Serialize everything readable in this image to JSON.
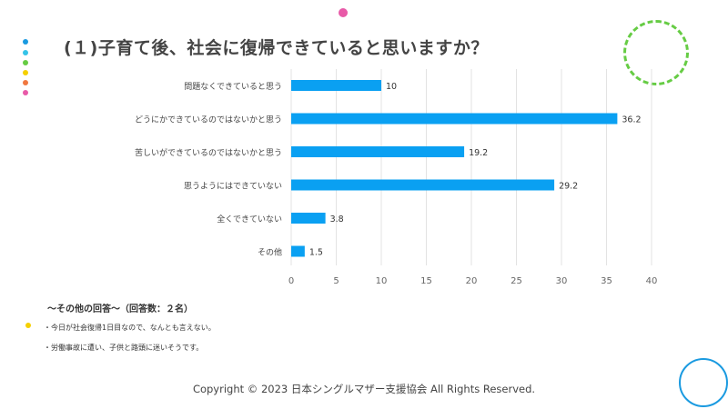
{
  "title": "(１)子育て後、社会に復帰できていると思いますか？",
  "colors": {
    "bar": "#0aa0f2",
    "grid": "#e3e3e3",
    "dots": [
      "#1a9ae0",
      "#35c4e8",
      "#66cc44",
      "#f5d000",
      "#f07840",
      "#e85aa8"
    ],
    "top_dot": "#e85aa8",
    "ring_dashed": "#66cc44",
    "ring_blue": "#1a9ae0",
    "bullet": "#f5d000"
  },
  "chart_data": {
    "type": "bar",
    "orientation": "horizontal",
    "categories": [
      "問題なくできていると思う",
      "どうにかできているのではないかと思う",
      "苦しいができているのではないかと思う",
      "思うようにはできていない",
      "全くできていない",
      "その他"
    ],
    "values": [
      10,
      36.2,
      19.2,
      29.2,
      3.8,
      1.5
    ],
    "value_labels": [
      "10",
      "36.2",
      "19.2",
      "29.2",
      "3.8",
      "1.5"
    ],
    "xlim": [
      0,
      40
    ],
    "xticks": [
      "0",
      "5",
      "10",
      "15",
      "20",
      "25",
      "30",
      "35",
      "40"
    ],
    "grid": true,
    "unit": "%"
  },
  "other_answers": {
    "heading": "〜その他の回答〜（回答数：２名）",
    "items": [
      "・今日が社会復帰1日目なので、なんとも言えない。",
      "・労働事故に遭い、子供と路頭に迷いそうです。"
    ]
  },
  "copyright": "Copyright © 2023  日本シングルマザー支援協会   All Rights Reserved."
}
